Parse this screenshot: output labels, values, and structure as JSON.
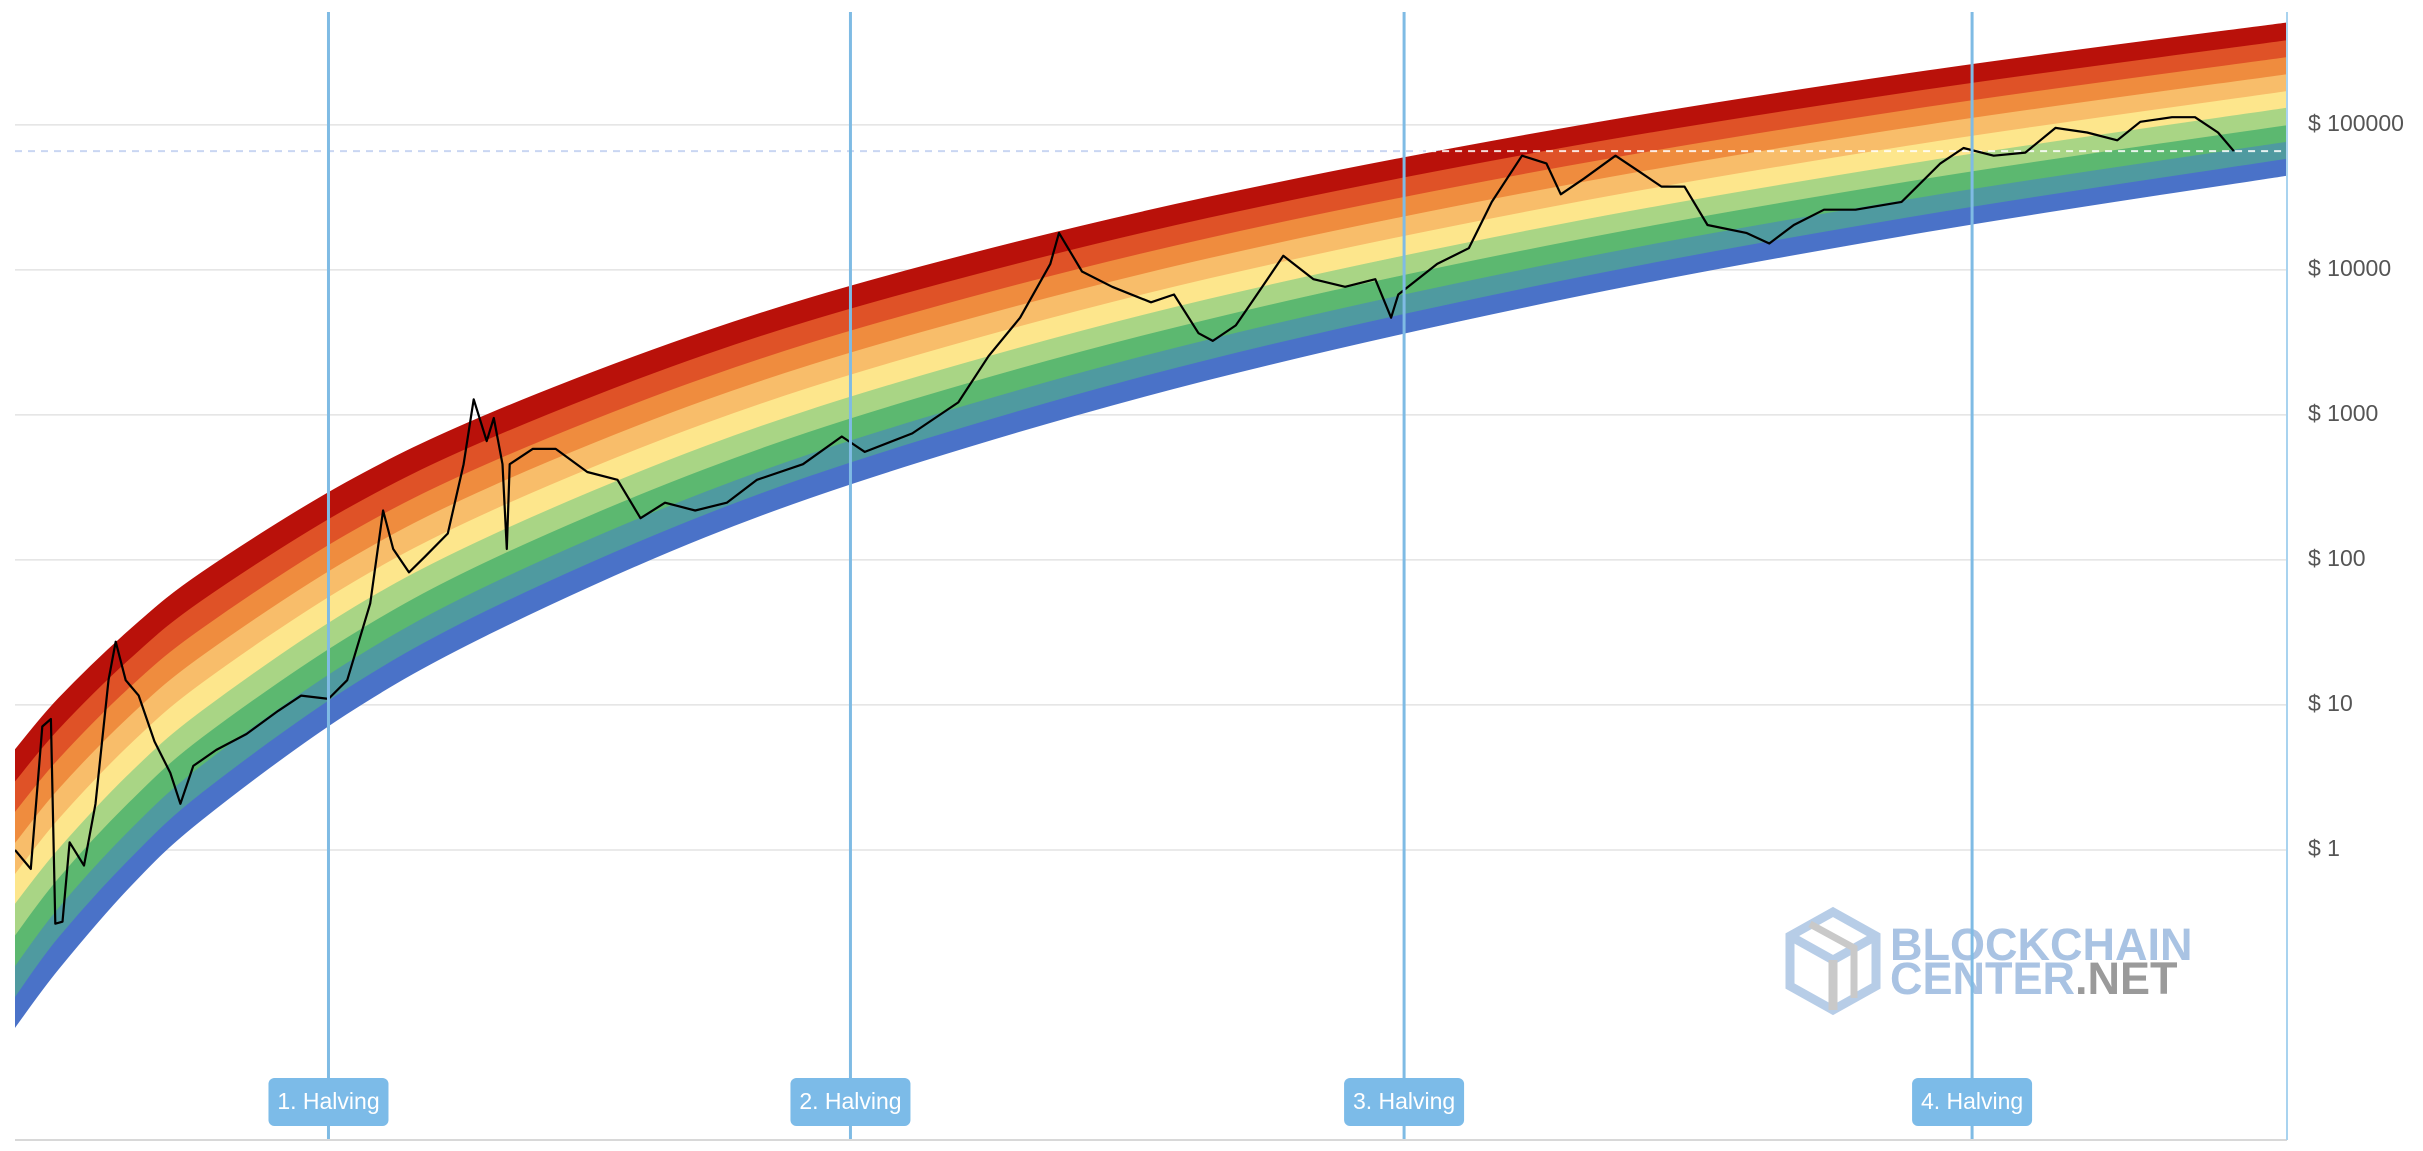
{
  "chart_data": {
    "type": "rainbow",
    "yscale": "log",
    "ylim": [
      0.01,
      600000
    ],
    "xlim": [
      2010.7,
      2026.5
    ],
    "yticks": [
      {
        "value": 1,
        "label": "$ 1"
      },
      {
        "value": 10,
        "label": "$ 10"
      },
      {
        "value": 100,
        "label": "$ 100"
      },
      {
        "value": 1000,
        "label": "$ 1000"
      },
      {
        "value": 10000,
        "label": "$ 10000"
      },
      {
        "value": 100000,
        "label": "$ 100000"
      }
    ],
    "grid": true,
    "bands": {
      "x": [
        2010.7,
        2011,
        2011.5,
        2012,
        2013,
        2014,
        2015.5,
        2017,
        2019,
        2021.5,
        2024,
        2026.5
      ],
      "colors": [
        "#4a72c8",
        "#4f9aa0",
        "#5cb870",
        "#a9d585",
        "#fde68c",
        "#f8bd6a",
        "#ef8c3e",
        "#df5227",
        "#b9110a"
      ],
      "edges": [
        [
          0.06,
          0.15,
          0.56,
          1.62,
          8.6,
          31,
          144,
          478,
          1750,
          6400,
          18400,
          44900
        ],
        [
          0.098,
          0.25,
          0.88,
          2.5,
          12.9,
          46,
          207,
          673,
          2420,
          8650,
          24400,
          58700
        ],
        [
          0.16,
          0.4,
          1.39,
          3.87,
          19.4,
          68,
          297,
          948,
          3330,
          11700,
          32400,
          76900
        ],
        [
          0.26,
          0.64,
          2.18,
          6,
          29,
          100,
          427,
          1340,
          4600,
          15800,
          43000,
          100000
        ],
        [
          0.43,
          1.02,
          3.43,
          9.2,
          44,
          147,
          614,
          1880,
          6350,
          21300,
          57000,
          132000
        ],
        [
          0.69,
          1.64,
          5.4,
          14.3,
          66,
          217,
          881,
          2650,
          8770,
          28800,
          75900,
          172000
        ],
        [
          1.13,
          2.64,
          8.5,
          22,
          99,
          320,
          1270,
          3740,
          12100,
          38900,
          101000,
          225000
        ],
        [
          1.85,
          4.25,
          13.4,
          34,
          150,
          470,
          1820,
          5270,
          16700,
          52500,
          134000,
          295000
        ],
        [
          3,
          6.8,
          21,
          53,
          225,
          690,
          2620,
          7430,
          23000,
          71000,
          177000,
          385000
        ],
        [
          4.9,
          11,
          33,
          82,
          340,
          1020,
          3760,
          10500,
          31700,
          95700,
          236000,
          505000
        ]
      ]
    },
    "x": [
      2010.7,
      2010.81,
      2010.89,
      2010.95,
      2010.98,
      2011.03,
      2011.08,
      2011.18,
      2011.26,
      2011.35,
      2011.4,
      2011.47,
      2011.56,
      2011.67,
      2011.78,
      2011.85,
      2011.94,
      2012.1,
      2012.31,
      2012.53,
      2012.69,
      2012.88,
      2013.01,
      2013.17,
      2013.26,
      2013.33,
      2013.44,
      2013.55,
      2013.71,
      2013.82,
      2013.89,
      2013.98,
      2014.03,
      2014.09,
      2014.12,
      2014.14,
      2014.3,
      2014.46,
      2014.68,
      2014.89,
      2015.05,
      2015.22,
      2015.43,
      2015.65,
      2015.86,
      2016.18,
      2016.45,
      2016.61,
      2016.94,
      2017.26,
      2017.47,
      2017.69,
      2017.9,
      2017.96,
      2018.12,
      2018.33,
      2018.6,
      2018.76,
      2018.93,
      2019.03,
      2019.19,
      2019.3,
      2019.52,
      2019.73,
      2019.95,
      2020.16,
      2020.27,
      2020.32,
      2020.59,
      2020.81,
      2020.97,
      2021.18,
      2021.35,
      2021.45,
      2021.61,
      2021.83,
      2021.99,
      2022.15,
      2022.31,
      2022.47,
      2022.74,
      2022.9,
      2023.07,
      2023.28,
      2023.5,
      2023.82,
      2024.09,
      2024.25,
      2024.46,
      2024.68,
      2024.89,
      2025.11,
      2025.32,
      2025.48,
      2025.7,
      2025.86,
      2026.02,
      2026.13
    ],
    "series": [
      {
        "color": "#000000",
        "values": [
          1,
          0.74,
          7.1,
          8.0,
          0.31,
          0.32,
          1.13,
          0.78,
          2.08,
          14.8,
          27.3,
          14.8,
          11.6,
          5.6,
          3.4,
          2.08,
          3.8,
          4.9,
          6.3,
          9.1,
          11.6,
          11.0,
          14.8,
          50,
          219,
          119,
          82,
          105,
          152,
          457,
          1280,
          660,
          952,
          457,
          119,
          457,
          583,
          583,
          404,
          357,
          194,
          248,
          219,
          248,
          357,
          457,
          710,
          556,
          745,
          1220,
          2540,
          4680,
          11000,
          18000,
          9750,
          7640,
          5980,
          6760,
          3660,
          3240,
          4140,
          5980,
          12500,
          8630,
          7640,
          8630,
          4680,
          6760,
          11000,
          14100,
          29400,
          61300,
          54200,
          33200,
          42500,
          61300,
          48000,
          37500,
          37500,
          20400,
          18000,
          15200,
          20400,
          26000,
          26000,
          29400,
          54200,
          69200,
          61300,
          64400,
          95200,
          88500,
          78300,
          105000,
          113000,
          113000,
          88500,
          65900
        ]
      }
    ],
    "reference_line": 65900,
    "annotations": [
      {
        "x": 2012.88,
        "label": "1. Halving"
      },
      {
        "x": 2016.51,
        "label": "2. Halving"
      },
      {
        "x": 2020.36,
        "label": "3. Halving"
      },
      {
        "x": 2024.31,
        "label": "4. Halving"
      }
    ],
    "watermark": [
      "BLOCKCHAIN",
      "CENTER",
      ".NET"
    ]
  }
}
